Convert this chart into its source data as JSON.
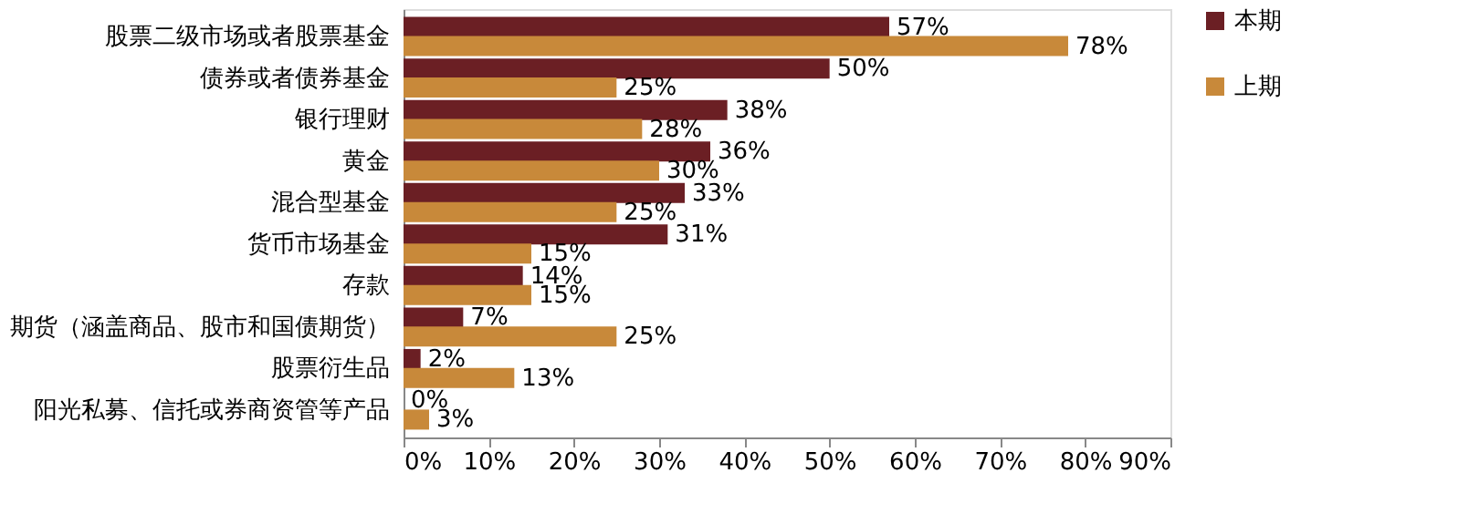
{
  "chart_data": {
    "type": "bar",
    "orientation": "horizontal",
    "categories": [
      "股票二级市场或者股票基金",
      "债券或者债券基金",
      "银行理财",
      "黄金",
      "混合型基金",
      "货币市场基金",
      "存款",
      "期货（涵盖商品、股市和国债期货）",
      "股票衍生品",
      "阳光私募、信托或券商资管等产品"
    ],
    "series": [
      {
        "name": "本期",
        "color": "#6b1f24",
        "values": [
          57,
          50,
          38,
          36,
          33,
          31,
          14,
          7,
          2,
          0
        ],
        "value_labels": [
          "57%",
          "50%",
          "38%",
          "36%",
          "33%",
          "31%",
          "14%",
          "7%",
          "2%",
          "0%"
        ]
      },
      {
        "name": "上期",
        "color": "#c8893a",
        "values": [
          78,
          25,
          28,
          30,
          25,
          15,
          15,
          25,
          13,
          3
        ],
        "value_labels": [
          "78%",
          "25%",
          "28%",
          "30%",
          "25%",
          "15%",
          "15%",
          "25%",
          "13%",
          "3%"
        ]
      }
    ],
    "xlim": [
      0,
      90
    ],
    "xticks": [
      {
        "value": 0,
        "label": "0%"
      },
      {
        "value": 10,
        "label": "10%"
      },
      {
        "value": 20,
        "label": "20%"
      },
      {
        "value": 30,
        "label": "30%"
      },
      {
        "value": 40,
        "label": "40%"
      },
      {
        "value": 50,
        "label": "50%"
      },
      {
        "value": 60,
        "label": "60%"
      },
      {
        "value": 70,
        "label": "70%"
      },
      {
        "value": 80,
        "label": "80%"
      },
      {
        "value": 90,
        "label": "90%"
      }
    ],
    "grid": false,
    "legend": "right"
  }
}
